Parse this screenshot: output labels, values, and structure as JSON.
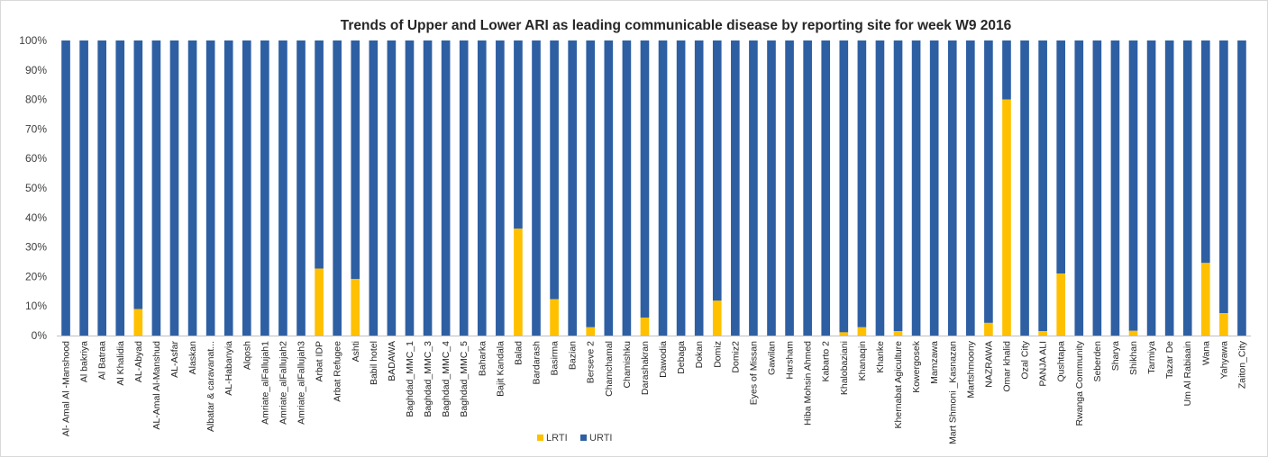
{
  "chart_data": {
    "type": "bar",
    "stacked": true,
    "normalized": true,
    "title": "Trends of Upper and Lower ARI as leading communicable disease by reporting site for week W9 2016",
    "xlabel": "",
    "ylabel": "",
    "ylim": [
      0,
      100
    ],
    "yticks": [
      "0%",
      "10%",
      "20%",
      "30%",
      "40%",
      "50%",
      "60%",
      "70%",
      "80%",
      "90%",
      "100%"
    ],
    "grid": false,
    "legend_position": "bottom",
    "categories": [
      "Al- Amal Al -Manshood",
      "Al bakriya",
      "Al Batraa",
      "Al Khalidia",
      "AL-Abyad",
      "AL-Amal Al-Manshud",
      "AL-Asfar",
      "Alaskan",
      "Albatar & caravanat...",
      "AL-Habanyia",
      "Alqosh",
      "Amriate_alFallujah1",
      "Amriate_alFallujah2",
      "Amriate_alFallujah3",
      "Arbat IDP",
      "Arbat Refugee",
      "Ashti",
      "Babil hotel",
      "BADAWA",
      "Baghdad_MMC_1",
      "Baghdad_MMC_3",
      "Baghdad_MMC_4",
      "Baghdad_MMC_5",
      "Baharka",
      "Bajit Kandala",
      "Balad",
      "Bardarash",
      "Basirma",
      "Bazian",
      "Berseve 2",
      "Chamchamal",
      "Chamishku",
      "Darashakran",
      "Dawodia",
      "Debaga",
      "Dokan",
      "Domiz",
      "Domiz2",
      "Eyes of Missan",
      "Gawilan",
      "Harsham",
      "Hiba Mohsin Ahmed",
      "Kabarto 2",
      "Khalobaziani",
      "Khanaqin",
      "Khanke",
      "Khernabat Agiculture",
      "Kowergosek",
      "Mamzawa",
      "Mart Shmoni _Kasnazan",
      "Martshmoony",
      "NAZRAWA",
      "Omar khalid",
      "Ozal City",
      "PANJA ALI",
      "Qushtapa",
      "Rwanga Community",
      "Seberden",
      "Sharya",
      "Shikhan",
      "Tarmiya",
      "Tazar De",
      "Um Al Rabiaain",
      "Wana",
      "Yahyawa",
      "Zaiton_City"
    ],
    "series": [
      {
        "name": "LRTI",
        "color": "#FFC000",
        "values": [
          0,
          0,
          0,
          0,
          9,
          0,
          0,
          0,
          0,
          0,
          0,
          0,
          0,
          0,
          22.7,
          0,
          19.2,
          0,
          0,
          0,
          0,
          0,
          0,
          0,
          0,
          36.2,
          0,
          12.3,
          0,
          2.8,
          0,
          0,
          6.1,
          0,
          0,
          0,
          11.8,
          0,
          0,
          0,
          0,
          0,
          0,
          1.1,
          2.8,
          0,
          1.5,
          0,
          0,
          0,
          0,
          4.3,
          80,
          0,
          1.5,
          21,
          0,
          0,
          0,
          1.6,
          0,
          0,
          0,
          24.6,
          7.6,
          0
        ]
      },
      {
        "name": "URTI",
        "color": "#2E5FA3",
        "values": [
          100,
          100,
          100,
          100,
          91,
          100,
          100,
          100,
          100,
          100,
          100,
          100,
          100,
          100,
          77.3,
          100,
          80.8,
          100,
          100,
          100,
          100,
          100,
          100,
          100,
          100,
          63.8,
          100,
          87.7,
          100,
          97.2,
          100,
          100,
          93.9,
          100,
          100,
          100,
          88.2,
          100,
          100,
          100,
          100,
          100,
          100,
          98.9,
          97.2,
          100,
          98.5,
          100,
          100,
          100,
          100,
          95.7,
          20,
          100,
          98.5,
          79,
          100,
          100,
          100,
          98.4,
          100,
          100,
          100,
          75.4,
          92.4,
          100
        ]
      }
    ]
  }
}
